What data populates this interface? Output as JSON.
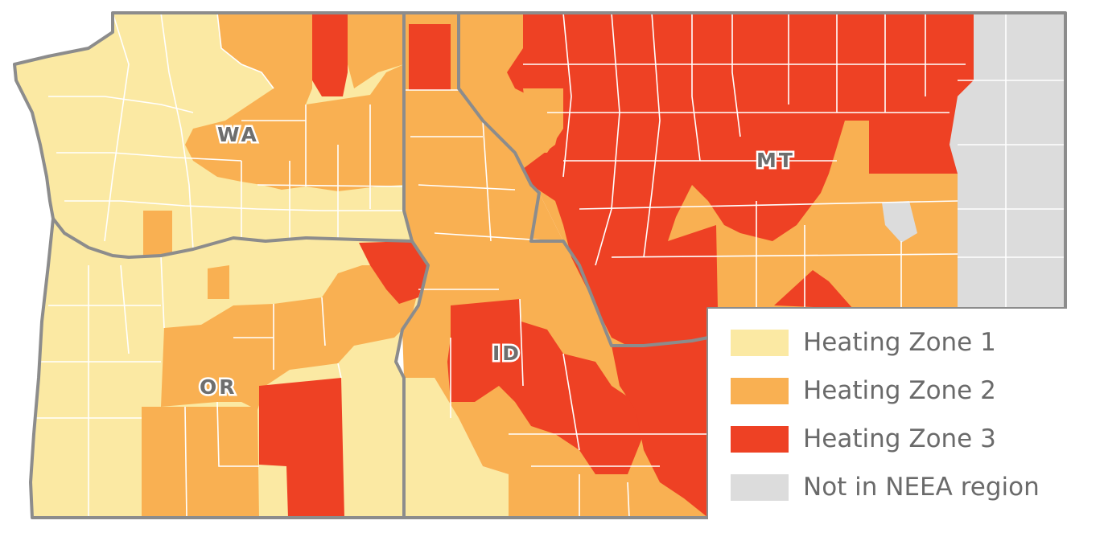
{
  "colors": {
    "zone1": "#fbe9a3",
    "zone2": "#f9b052",
    "zone3": "#ee4124",
    "not_neea": "#dcdcdc",
    "border": "#8c8c8c",
    "county_line": "#ffffff"
  },
  "states": [
    {
      "id": "WA",
      "label": "WA"
    },
    {
      "id": "OR",
      "label": "OR"
    },
    {
      "id": "ID",
      "label": "ID"
    },
    {
      "id": "MT",
      "label": "MT"
    }
  ],
  "legend": {
    "items": [
      {
        "label": "Heating Zone 1",
        "color": "#fbe9a3"
      },
      {
        "label": "Heating Zone 2",
        "color": "#f9b052"
      },
      {
        "label": "Heating Zone 3",
        "color": "#ee4124"
      },
      {
        "label": "Not in NEEA region",
        "color": "#dcdcdc"
      }
    ]
  }
}
